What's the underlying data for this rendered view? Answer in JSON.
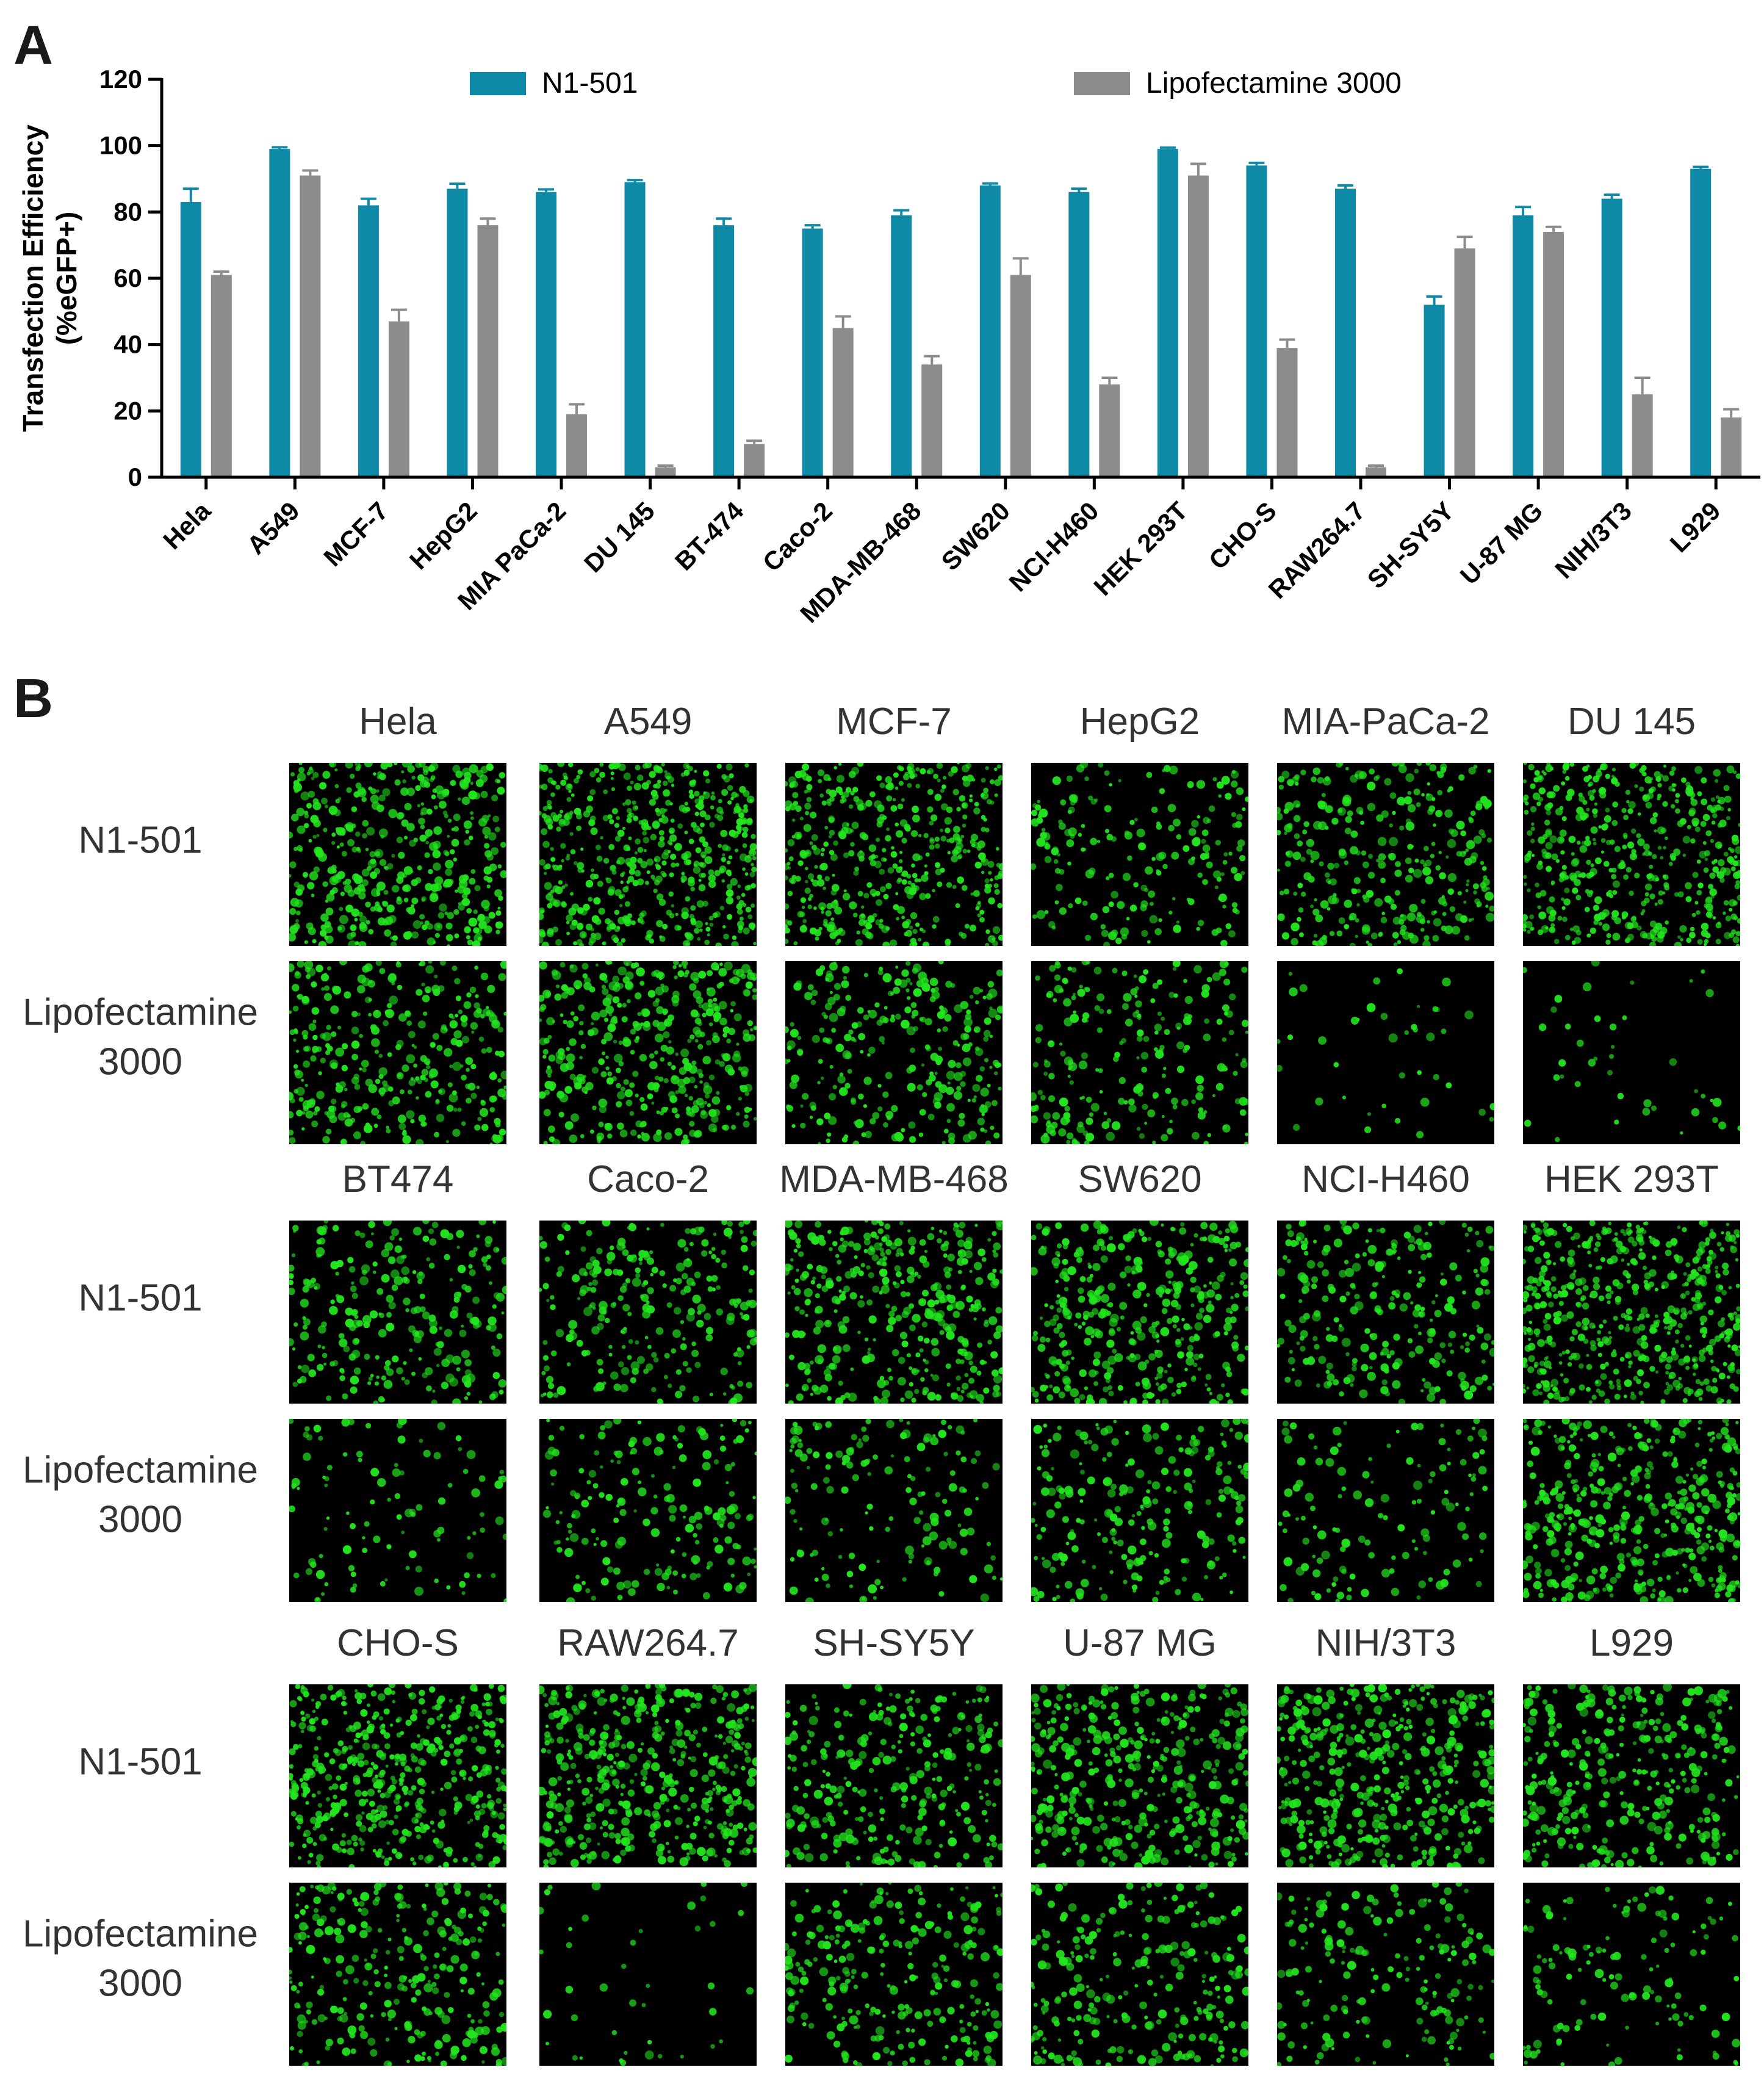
{
  "panels": {
    "a_letter": "A",
    "b_letter": "B"
  },
  "chart_data": {
    "type": "bar",
    "categories": [
      "Hela",
      "A549",
      "MCF-7",
      "HepG2",
      "MIA PaCa-2",
      "DU 145",
      "BT-474",
      "Caco-2",
      "MDA-MB-468",
      "SW620",
      "NCI-H460",
      "HEK 293T",
      "CHO-S",
      "RAW264.7",
      "SH-SY5Y",
      "U-87 MG",
      "NIH/3T3",
      "L929"
    ],
    "series": [
      {
        "name": "N1-501",
        "color": "#0e8aa6",
        "values": [
          83,
          99,
          82,
          87,
          86,
          89,
          76,
          75,
          79,
          88,
          86,
          99,
          94,
          87,
          52,
          79,
          84,
          93
        ],
        "errors": [
          4,
          0.5,
          2,
          1.5,
          0.8,
          0.6,
          2,
          1,
          1.5,
          0.6,
          1,
          0.4,
          0.8,
          1,
          2.5,
          2.5,
          1.2,
          0.6
        ]
      },
      {
        "name": "Lipofectamine 3000",
        "color": "#8c8c8c",
        "values": [
          61,
          91,
          47,
          76,
          19,
          3,
          10,
          45,
          34,
          61,
          28,
          91,
          39,
          3,
          69,
          74,
          25,
          18
        ],
        "errors": [
          1,
          1.5,
          3.5,
          2,
          3,
          0.5,
          1,
          3.5,
          2.5,
          5,
          2,
          3.5,
          2.5,
          0.5,
          3.5,
          1.5,
          5,
          2.5
        ]
      }
    ],
    "ylabel_line1": "Transfection Efficiency",
    "ylabel_line2": "(%eGFP+)",
    "ylim": [
      0,
      120
    ],
    "yticks": [
      0,
      20,
      40,
      60,
      80,
      100,
      120
    ],
    "grid": false,
    "legend": "top"
  },
  "micrographs": {
    "row_labels": {
      "n1": "N1-501",
      "lipo_line1": "Lipofectamine",
      "lipo_line2": "3000"
    },
    "groups": [
      {
        "cells": [
          {
            "name": "Hela",
            "n1_density": 0.8,
            "lipo_density": 0.6
          },
          {
            "name": "A549",
            "n1_density": 1.0,
            "lipo_density": 0.75
          },
          {
            "name": "MCF-7",
            "n1_density": 0.85,
            "lipo_density": 0.5
          },
          {
            "name": "HepG2",
            "n1_density": 0.35,
            "lipo_density": 0.4
          },
          {
            "name": "MIA-PaCa-2",
            "n1_density": 0.55,
            "lipo_density": 0.03
          },
          {
            "name": "DU 145",
            "n1_density": 0.9,
            "lipo_density": 0.03
          }
        ]
      },
      {
        "cells": [
          {
            "name": "BT474",
            "n1_density": 0.45,
            "lipo_density": 0.15
          },
          {
            "name": "Caco-2",
            "n1_density": 0.45,
            "lipo_density": 0.3
          },
          {
            "name": "MDA-MB-468",
            "n1_density": 0.7,
            "lipo_density": 0.25
          },
          {
            "name": "SW620",
            "n1_density": 0.7,
            "lipo_density": 0.4
          },
          {
            "name": "NCI-H460",
            "n1_density": 0.45,
            "lipo_density": 0.2
          },
          {
            "name": "HEK 293T",
            "n1_density": 1.0,
            "lipo_density": 0.8
          }
        ]
      },
      {
        "cells": [
          {
            "name": "CHO-S",
            "n1_density": 0.9,
            "lipo_density": 0.5
          },
          {
            "name": "RAW264.7",
            "n1_density": 0.8,
            "lipo_density": 0.03
          },
          {
            "name": "SH-SY5Y",
            "n1_density": 0.5,
            "lipo_density": 0.45
          },
          {
            "name": "U-87 MG",
            "n1_density": 0.7,
            "lipo_density": 0.45
          },
          {
            "name": "NIH/3T3",
            "n1_density": 0.8,
            "lipo_density": 0.3
          },
          {
            "name": "L929",
            "n1_density": 0.6,
            "lipo_density": 0.2
          }
        ]
      }
    ],
    "green": "#22e51e"
  }
}
